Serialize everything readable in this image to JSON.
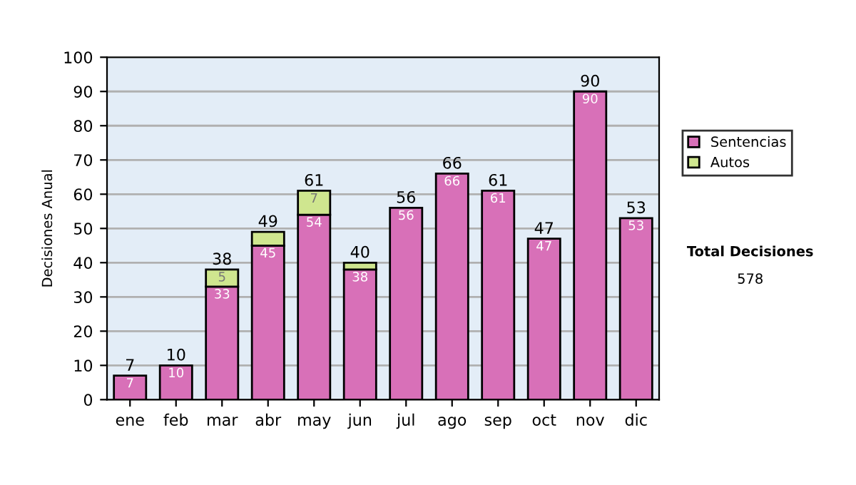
{
  "chart_data": {
    "type": "bar",
    "stacked": true,
    "ylabel": "Decisiones Anual",
    "categories": [
      "ene",
      "feb",
      "mar",
      "abr",
      "may",
      "jun",
      "jul",
      "ago",
      "sep",
      "oct",
      "nov",
      "dic"
    ],
    "series": [
      {
        "name": "Sentencias",
        "color": "#d870b8",
        "values": [
          7,
          10,
          33,
          45,
          54,
          38,
          56,
          66,
          61,
          47,
          90,
          53
        ],
        "value_labels": [
          "7",
          "10",
          "33",
          "45",
          "54",
          "38",
          "56",
          "66",
          "61",
          "47",
          "90",
          "53"
        ]
      },
      {
        "name": "Autos",
        "color": "#cfe68f",
        "values": [
          null,
          null,
          5,
          4,
          7,
          2,
          null,
          null,
          null,
          null,
          null,
          null
        ],
        "value_labels": [
          null,
          null,
          "5",
          null,
          "7",
          null,
          null,
          null,
          null,
          null,
          null,
          null
        ]
      }
    ],
    "totals": [
      "7",
      "10",
      "38",
      "49",
      "61",
      "40",
      "56",
      "66",
      "61",
      "47",
      "90",
      "53"
    ],
    "ylim": [
      0,
      100
    ],
    "yticks": [
      0,
      10,
      20,
      30,
      40,
      50,
      60,
      70,
      80,
      90,
      100
    ],
    "grid": "y",
    "legend": "right",
    "annotations": [
      "Total Decisiones",
      "578"
    ]
  }
}
